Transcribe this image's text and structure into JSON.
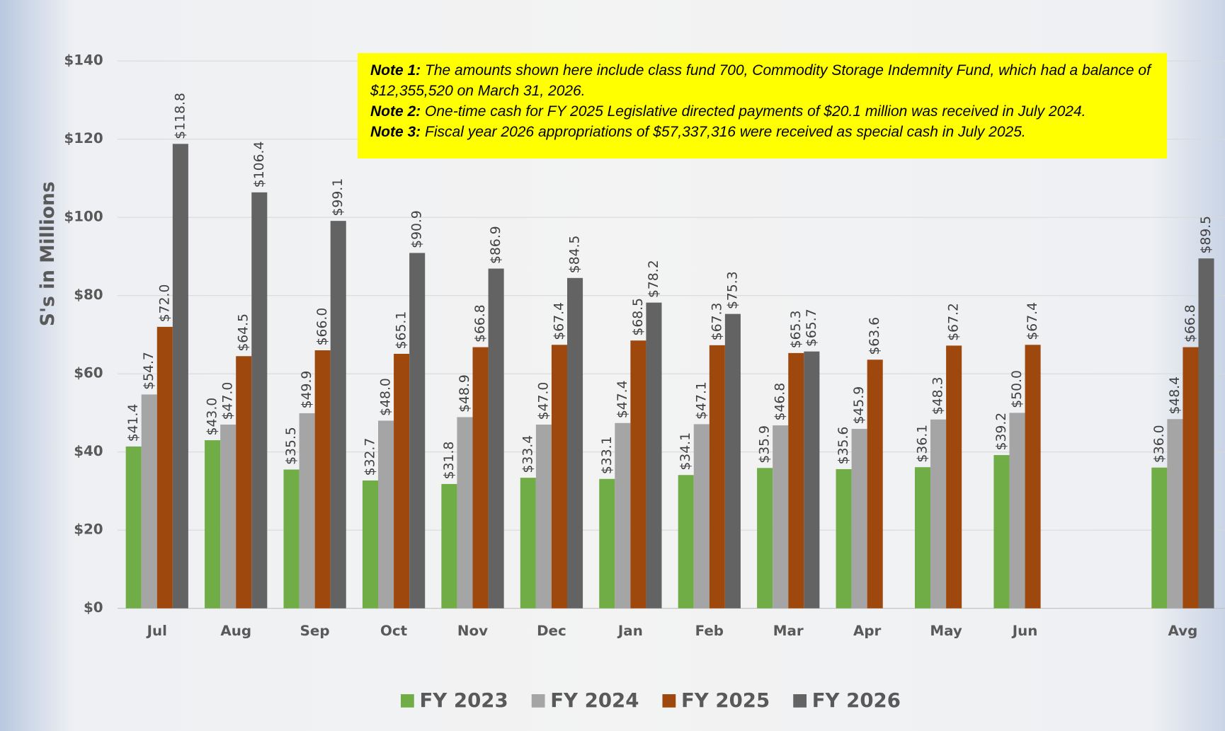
{
  "chart_data": {
    "type": "bar",
    "y_label": "S's in Millions",
    "categories": [
      "Jul",
      "Aug",
      "Sep",
      "Oct",
      "Nov",
      "Dec",
      "Jan",
      "Feb",
      "Mar",
      "Apr",
      "May",
      "Jun",
      null,
      "Avg"
    ],
    "series": [
      {
        "name": "FY 2023",
        "color": "#70ad47",
        "values": [
          41.4,
          43.0,
          35.5,
          32.7,
          31.8,
          33.4,
          33.1,
          34.1,
          35.9,
          35.6,
          36.1,
          39.2,
          null,
          36.0
        ],
        "value_labels": [
          "$41.4",
          "$43.0",
          "$35.5",
          "$32.7",
          "$31.8",
          "$33.4",
          "$33.1",
          "$34.1",
          "$35.9",
          "$35.6",
          "$36.1",
          "$39.2",
          null,
          "$36.0"
        ]
      },
      {
        "name": "FY 2024",
        "color": "#a5a5a5",
        "values": [
          54.7,
          47.0,
          49.9,
          48.0,
          48.9,
          47.0,
          47.4,
          47.1,
          46.8,
          45.9,
          48.3,
          50.0,
          null,
          48.4
        ],
        "value_labels": [
          "$54.7",
          "$47.0",
          "$49.9",
          "$48.0",
          "$48.9",
          "$47.0",
          "$47.4",
          "$47.1",
          "$46.8",
          "$45.9",
          "$48.3",
          "$50.0",
          null,
          "$48.4"
        ]
      },
      {
        "name": "FY 2025",
        "color": "#9e480e",
        "values": [
          72.0,
          64.5,
          66.0,
          65.1,
          66.8,
          67.4,
          68.5,
          67.3,
          65.3,
          63.6,
          67.2,
          67.4,
          null,
          66.8
        ],
        "value_labels": [
          "$72.0",
          "$64.5",
          "$66.0",
          "$65.1",
          "$66.8",
          "$67.4",
          "$68.5",
          "$67.3",
          "$65.3",
          "$63.6",
          "$67.2",
          "$67.4",
          null,
          "$66.8"
        ]
      },
      {
        "name": "FY 2026",
        "color": "#636363",
        "values": [
          118.8,
          106.4,
          99.1,
          90.9,
          86.9,
          84.5,
          78.2,
          75.3,
          65.7,
          null,
          null,
          null,
          null,
          89.5
        ],
        "value_labels": [
          "$118.8",
          "$106.4",
          "$99.1",
          "$90.9",
          "$86.9",
          "$84.5",
          "$78.2",
          "$75.3",
          "$65.7",
          null,
          null,
          null,
          null,
          "$89.5"
        ]
      }
    ],
    "ylim": [
      0,
      140
    ],
    "yticks": [
      {
        "value": 0,
        "label": "$0"
      },
      {
        "value": 20,
        "label": "$20"
      },
      {
        "value": 40,
        "label": "$40"
      },
      {
        "value": 60,
        "label": "$60"
      },
      {
        "value": 80,
        "label": "$80"
      },
      {
        "value": 100,
        "label": "$100"
      },
      {
        "value": 120,
        "label": "$120"
      },
      {
        "value": 140,
        "label": "$140"
      }
    ],
    "grid": true,
    "legend": "bottom",
    "notes": [
      {
        "label": "Note 1:",
        "text": "The amounts shown here include class fund 700, Commodity Storage Indemnity Fund, which had a balance of $12,355,520 on March 31, 2026."
      },
      {
        "label": "Note 2:",
        "text": "One-time cash for FY 2025 Legislative directed payments of $20.1 million was received in July 2024."
      },
      {
        "label": "Note 3:",
        "text": "Fiscal year 2026 appropriations of $57,337,316 were received as special cash in July 2025."
      }
    ]
  }
}
